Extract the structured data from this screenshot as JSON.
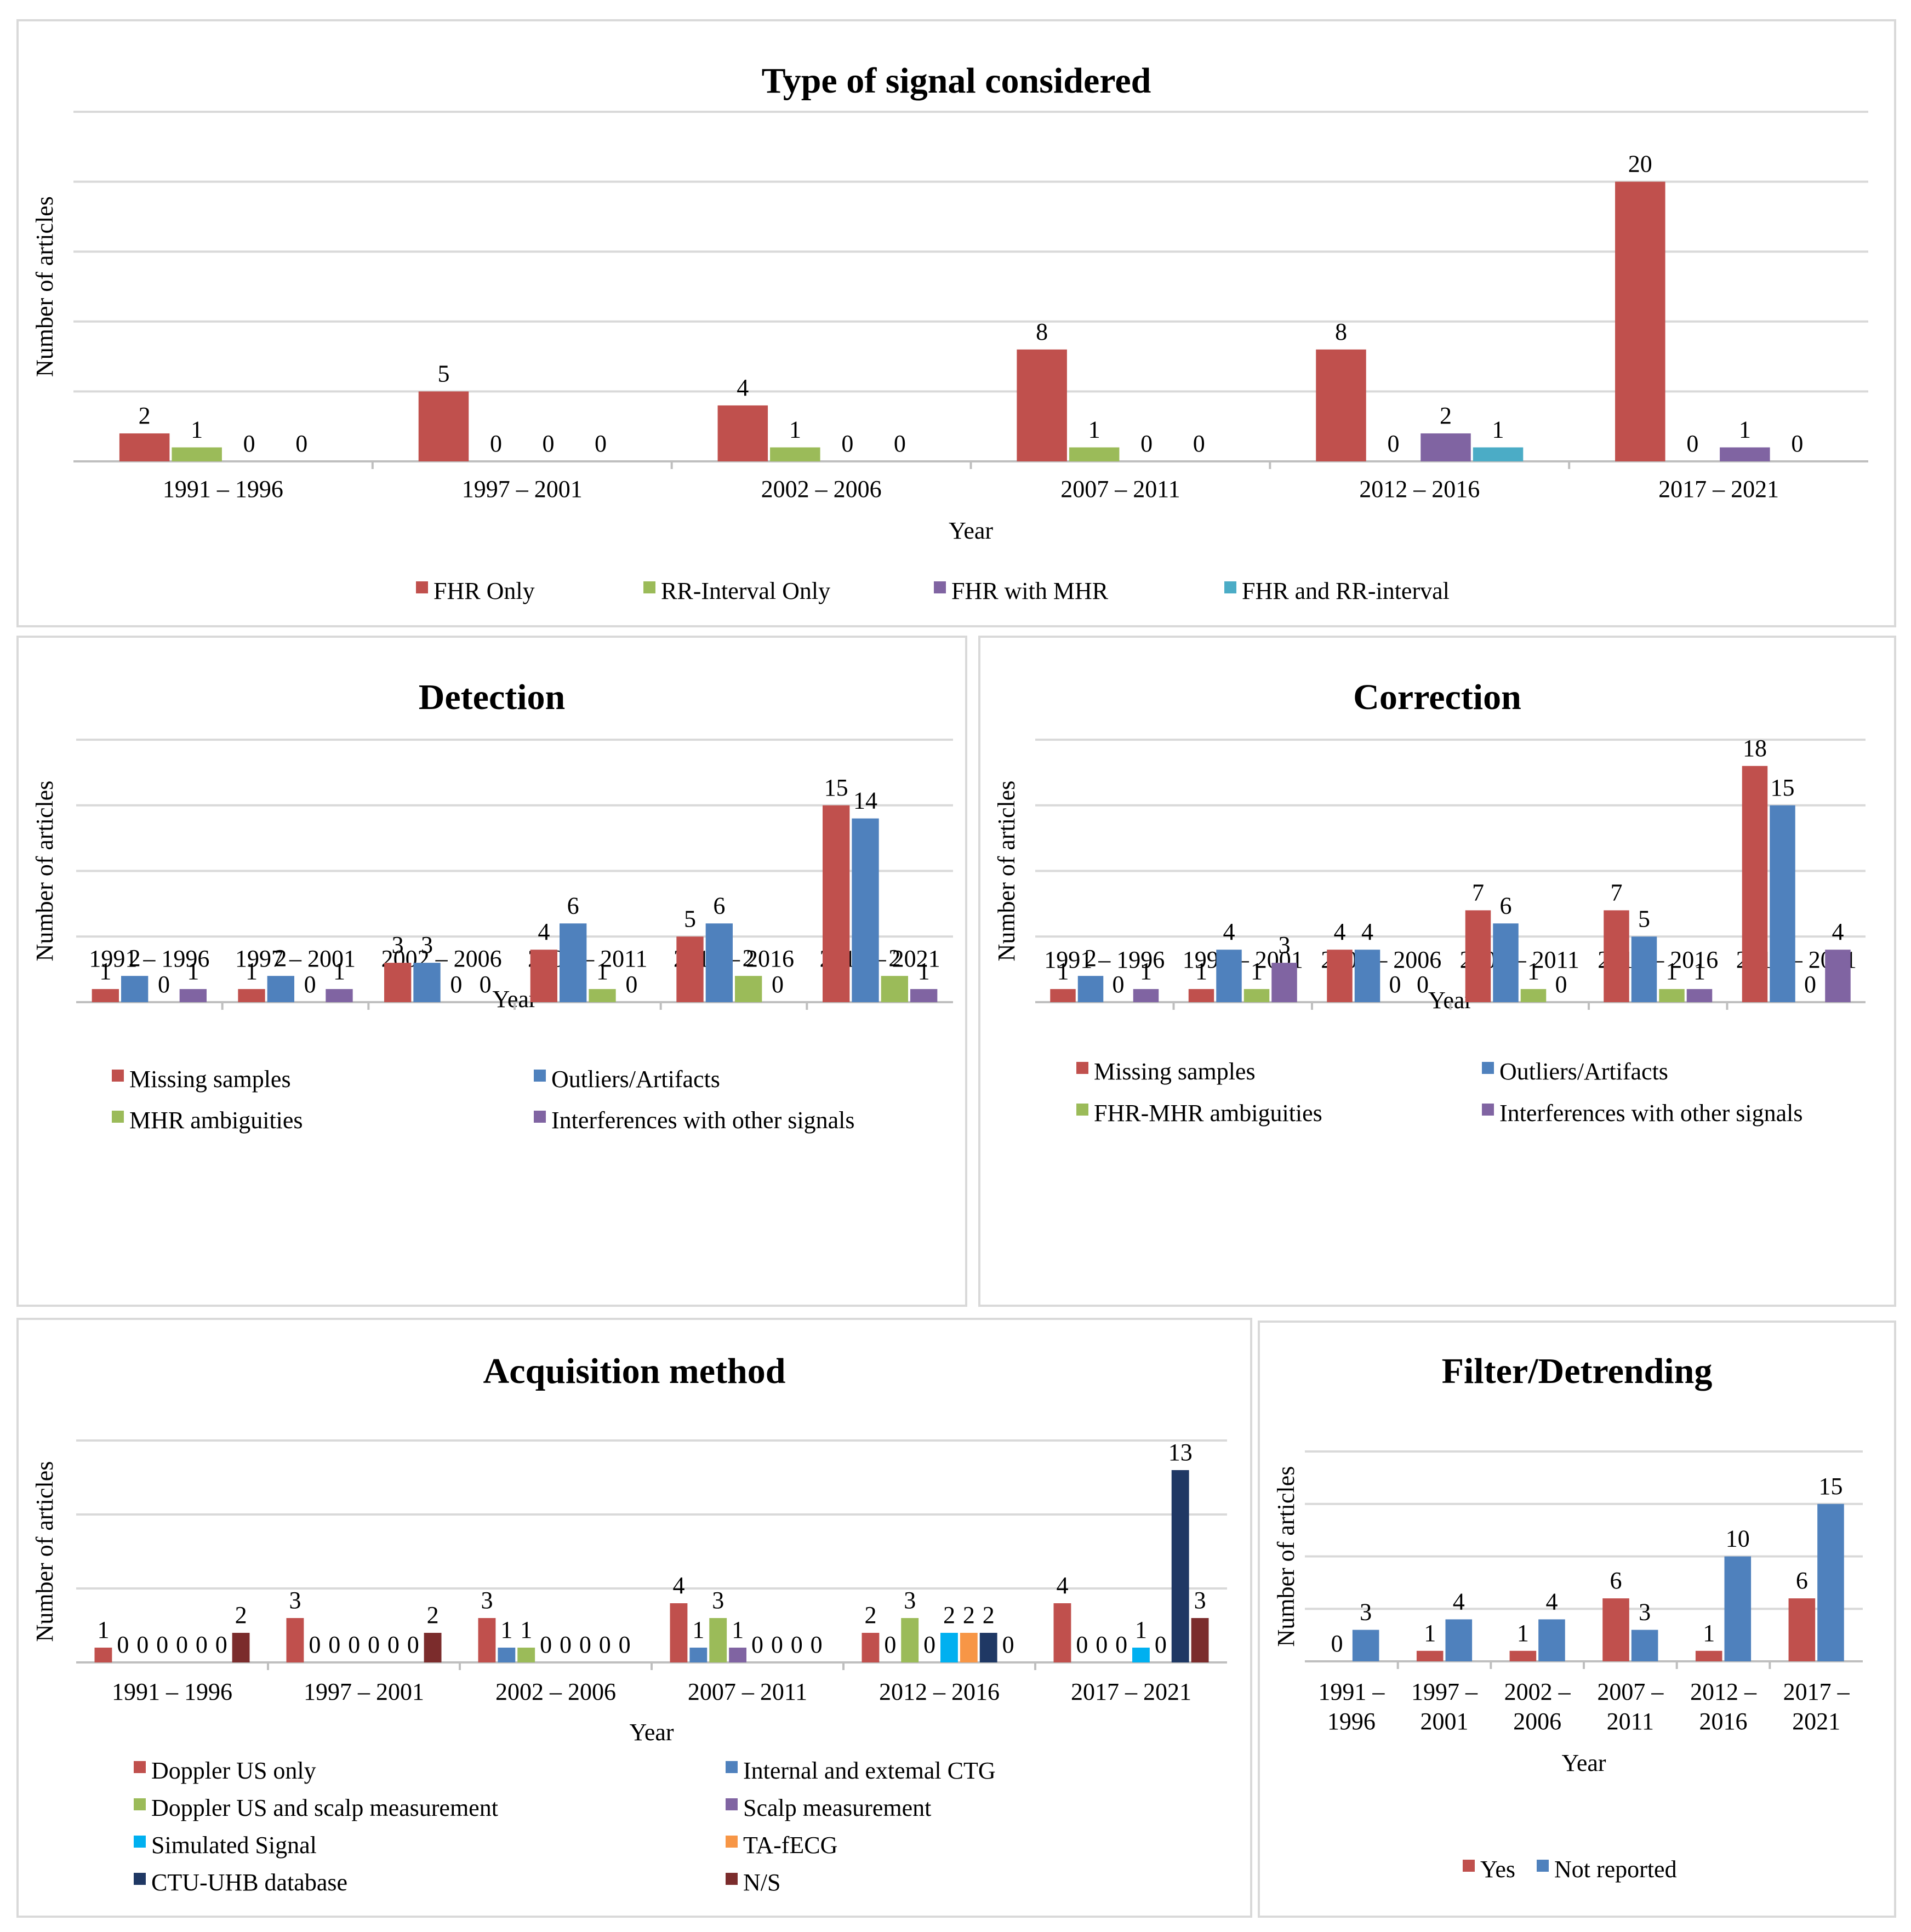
{
  "chart_data": [
    {
      "type": "bar",
      "title": "Type of signal considered",
      "xlabel": "Year",
      "ylabel": "Number of articles",
      "categories": [
        "1991 – 1996",
        "1997 – 2001",
        "2002 – 2006",
        "2007 – 2011",
        "2012 – 2016",
        "2017 – 2021"
      ],
      "series": [
        {
          "name": "FHR Only",
          "color": "#c0504d",
          "values": [
            2,
            5,
            4,
            8,
            8,
            20
          ]
        },
        {
          "name": "RR-Interval Only",
          "color": "#9bbb59",
          "values": [
            1,
            0,
            1,
            1,
            0,
            0
          ]
        },
        {
          "name": "FHR with MHR",
          "color": "#8064a2",
          "values": [
            0,
            0,
            0,
            0,
            2,
            1
          ]
        },
        {
          "name": "FHR and RR-interval",
          "color": "#4bacc6",
          "values": [
            0,
            0,
            0,
            0,
            1,
            0
          ]
        }
      ],
      "ylim": [
        0,
        25
      ],
      "grid": true,
      "legend": "bottom"
    },
    {
      "type": "bar",
      "title": "Detection",
      "xlabel": "Year",
      "ylabel": "Number of articles",
      "categories": [
        "1991 – 1996",
        "1997 – 2001",
        "2002 – 2006",
        "2007 – 2011",
        "2012 – 2016",
        "2017 – 2021"
      ],
      "series": [
        {
          "name": "Missing samples",
          "color": "#c0504d",
          "values": [
            1,
            1,
            3,
            4,
            5,
            15
          ]
        },
        {
          "name": "Outliers/Artifacts",
          "color": "#4f81bd",
          "values": [
            2,
            2,
            3,
            6,
            6,
            14
          ]
        },
        {
          "name": "MHR ambiguities",
          "color": "#9bbb59",
          "values": [
            0,
            0,
            0,
            1,
            2,
            2
          ]
        },
        {
          "name": "Interferences with other signals",
          "color": "#8064a2",
          "values": [
            1,
            1,
            0,
            0,
            0,
            1
          ]
        }
      ],
      "ylim": [
        0,
        20
      ],
      "grid": true,
      "legend": "bottom"
    },
    {
      "type": "bar",
      "title": "Correction",
      "xlabel": "Year",
      "ylabel": "Number of articles",
      "categories": [
        "1991 – 1996",
        "1997 – 2001",
        "2002 – 2006",
        "2007 – 2011",
        "2012 – 2016",
        "2017 – 2021"
      ],
      "series": [
        {
          "name": "Missing samples",
          "color": "#c0504d",
          "values": [
            1,
            1,
            4,
            7,
            7,
            18
          ]
        },
        {
          "name": "Outliers/Artifacts",
          "color": "#4f81bd",
          "values": [
            2,
            4,
            4,
            6,
            5,
            15
          ]
        },
        {
          "name": "FHR-MHR ambiguities",
          "color": "#9bbb59",
          "values": [
            0,
            1,
            0,
            1,
            1,
            0
          ]
        },
        {
          "name": "Interferences with other signals",
          "color": "#8064a2",
          "values": [
            1,
            3,
            0,
            0,
            1,
            4
          ]
        }
      ],
      "ylim": [
        0,
        20
      ],
      "grid": true,
      "legend": "bottom"
    },
    {
      "type": "bar",
      "title": "Acquisition method",
      "xlabel": "Year",
      "ylabel": "Number of articles",
      "categories": [
        "1991 – 1996",
        "1997 – 2001",
        "2002 – 2006",
        "2007 – 2011",
        "2012 – 2016",
        "2017 – 2021"
      ],
      "series": [
        {
          "name": "Doppler US only",
          "color": "#c0504d",
          "values": [
            1,
            3,
            3,
            4,
            2,
            4
          ]
        },
        {
          "name": "Internal and extemal CTG",
          "color": "#4f81bd",
          "values": [
            0,
            0,
            1,
            1,
            0,
            0
          ]
        },
        {
          "name": "Doppler US and scalp measurement",
          "color": "#9bbb59",
          "values": [
            0,
            0,
            1,
            3,
            3,
            0
          ]
        },
        {
          "name": "Scalp measurement",
          "color": "#8064a2",
          "values": [
            0,
            0,
            0,
            1,
            0,
            0
          ]
        },
        {
          "name": "Simulated Signal",
          "color": "#00b0f0",
          "values": [
            0,
            0,
            0,
            0,
            2,
            1
          ]
        },
        {
          "name": "TA-fECG",
          "color": "#f79646",
          "values": [
            0,
            0,
            0,
            0,
            2,
            0
          ]
        },
        {
          "name": "CTU-UHB database",
          "color": "#1f3864",
          "values": [
            0,
            0,
            0,
            0,
            2,
            13
          ]
        },
        {
          "name": "N/S",
          "color": "#7b2c2c",
          "values": [
            2,
            2,
            0,
            0,
            0,
            3
          ]
        }
      ],
      "ylim": [
        0,
        15
      ],
      "grid": true,
      "legend": "bottom"
    },
    {
      "type": "bar",
      "title": "Filter/Detrending",
      "xlabel": "Year",
      "ylabel": "Number of articles",
      "categories": [
        [
          "1991 –",
          "1996"
        ],
        [
          "1997 –",
          "2001"
        ],
        [
          "2002 –",
          "2006"
        ],
        [
          "2007 –",
          "2011"
        ],
        [
          "2012 –",
          "2016"
        ],
        [
          "2017 –",
          "2021"
        ]
      ],
      "series": [
        {
          "name": "Yes",
          "color": "#c0504d",
          "values": [
            0,
            1,
            1,
            6,
            1,
            6
          ]
        },
        {
          "name": "Not reported",
          "color": "#4f81bd",
          "values": [
            3,
            4,
            4,
            3,
            10,
            15
          ]
        }
      ],
      "ylim": [
        0,
        20
      ],
      "grid": true,
      "legend": "bottom"
    }
  ]
}
